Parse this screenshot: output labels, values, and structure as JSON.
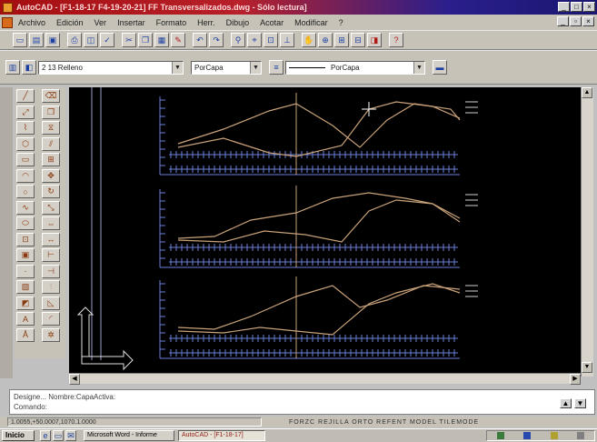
{
  "window": {
    "title": "AutoCAD - [F1-18-17 F4-19-20-21] FF Transversalizados.dwg - Sólo lectura]"
  },
  "menu": {
    "items": [
      "Archivo",
      "Edición",
      "Ver",
      "Insertar",
      "Formato",
      "Herr.",
      "Dibujo",
      "Acotar",
      "Modificar",
      "?"
    ]
  },
  "layer_toolbar": {
    "layer_value": "2 13 Relleno",
    "color_value": "PorCapa",
    "linetype_value": "PorCapa"
  },
  "drawing": {
    "background": "#000000",
    "profile_color": "#c9a27a",
    "grid_color": "#6a7fd8",
    "axis_color": "#9aa0c8"
  },
  "command_line": {
    "history": "Designe... Nombre:CapaActiva:",
    "prompt": "Comando:"
  },
  "status": {
    "coords": "1.0055,+50.0007,1070.1.0000",
    "modes": "FORZC REJILLA ORTO REFENT MODEL TILEMODE"
  },
  "taskbar": {
    "start_label": "Inicio",
    "items": [
      "Microsoft Word - Informe",
      "AutoCAD - [F1-18-17]"
    ]
  }
}
